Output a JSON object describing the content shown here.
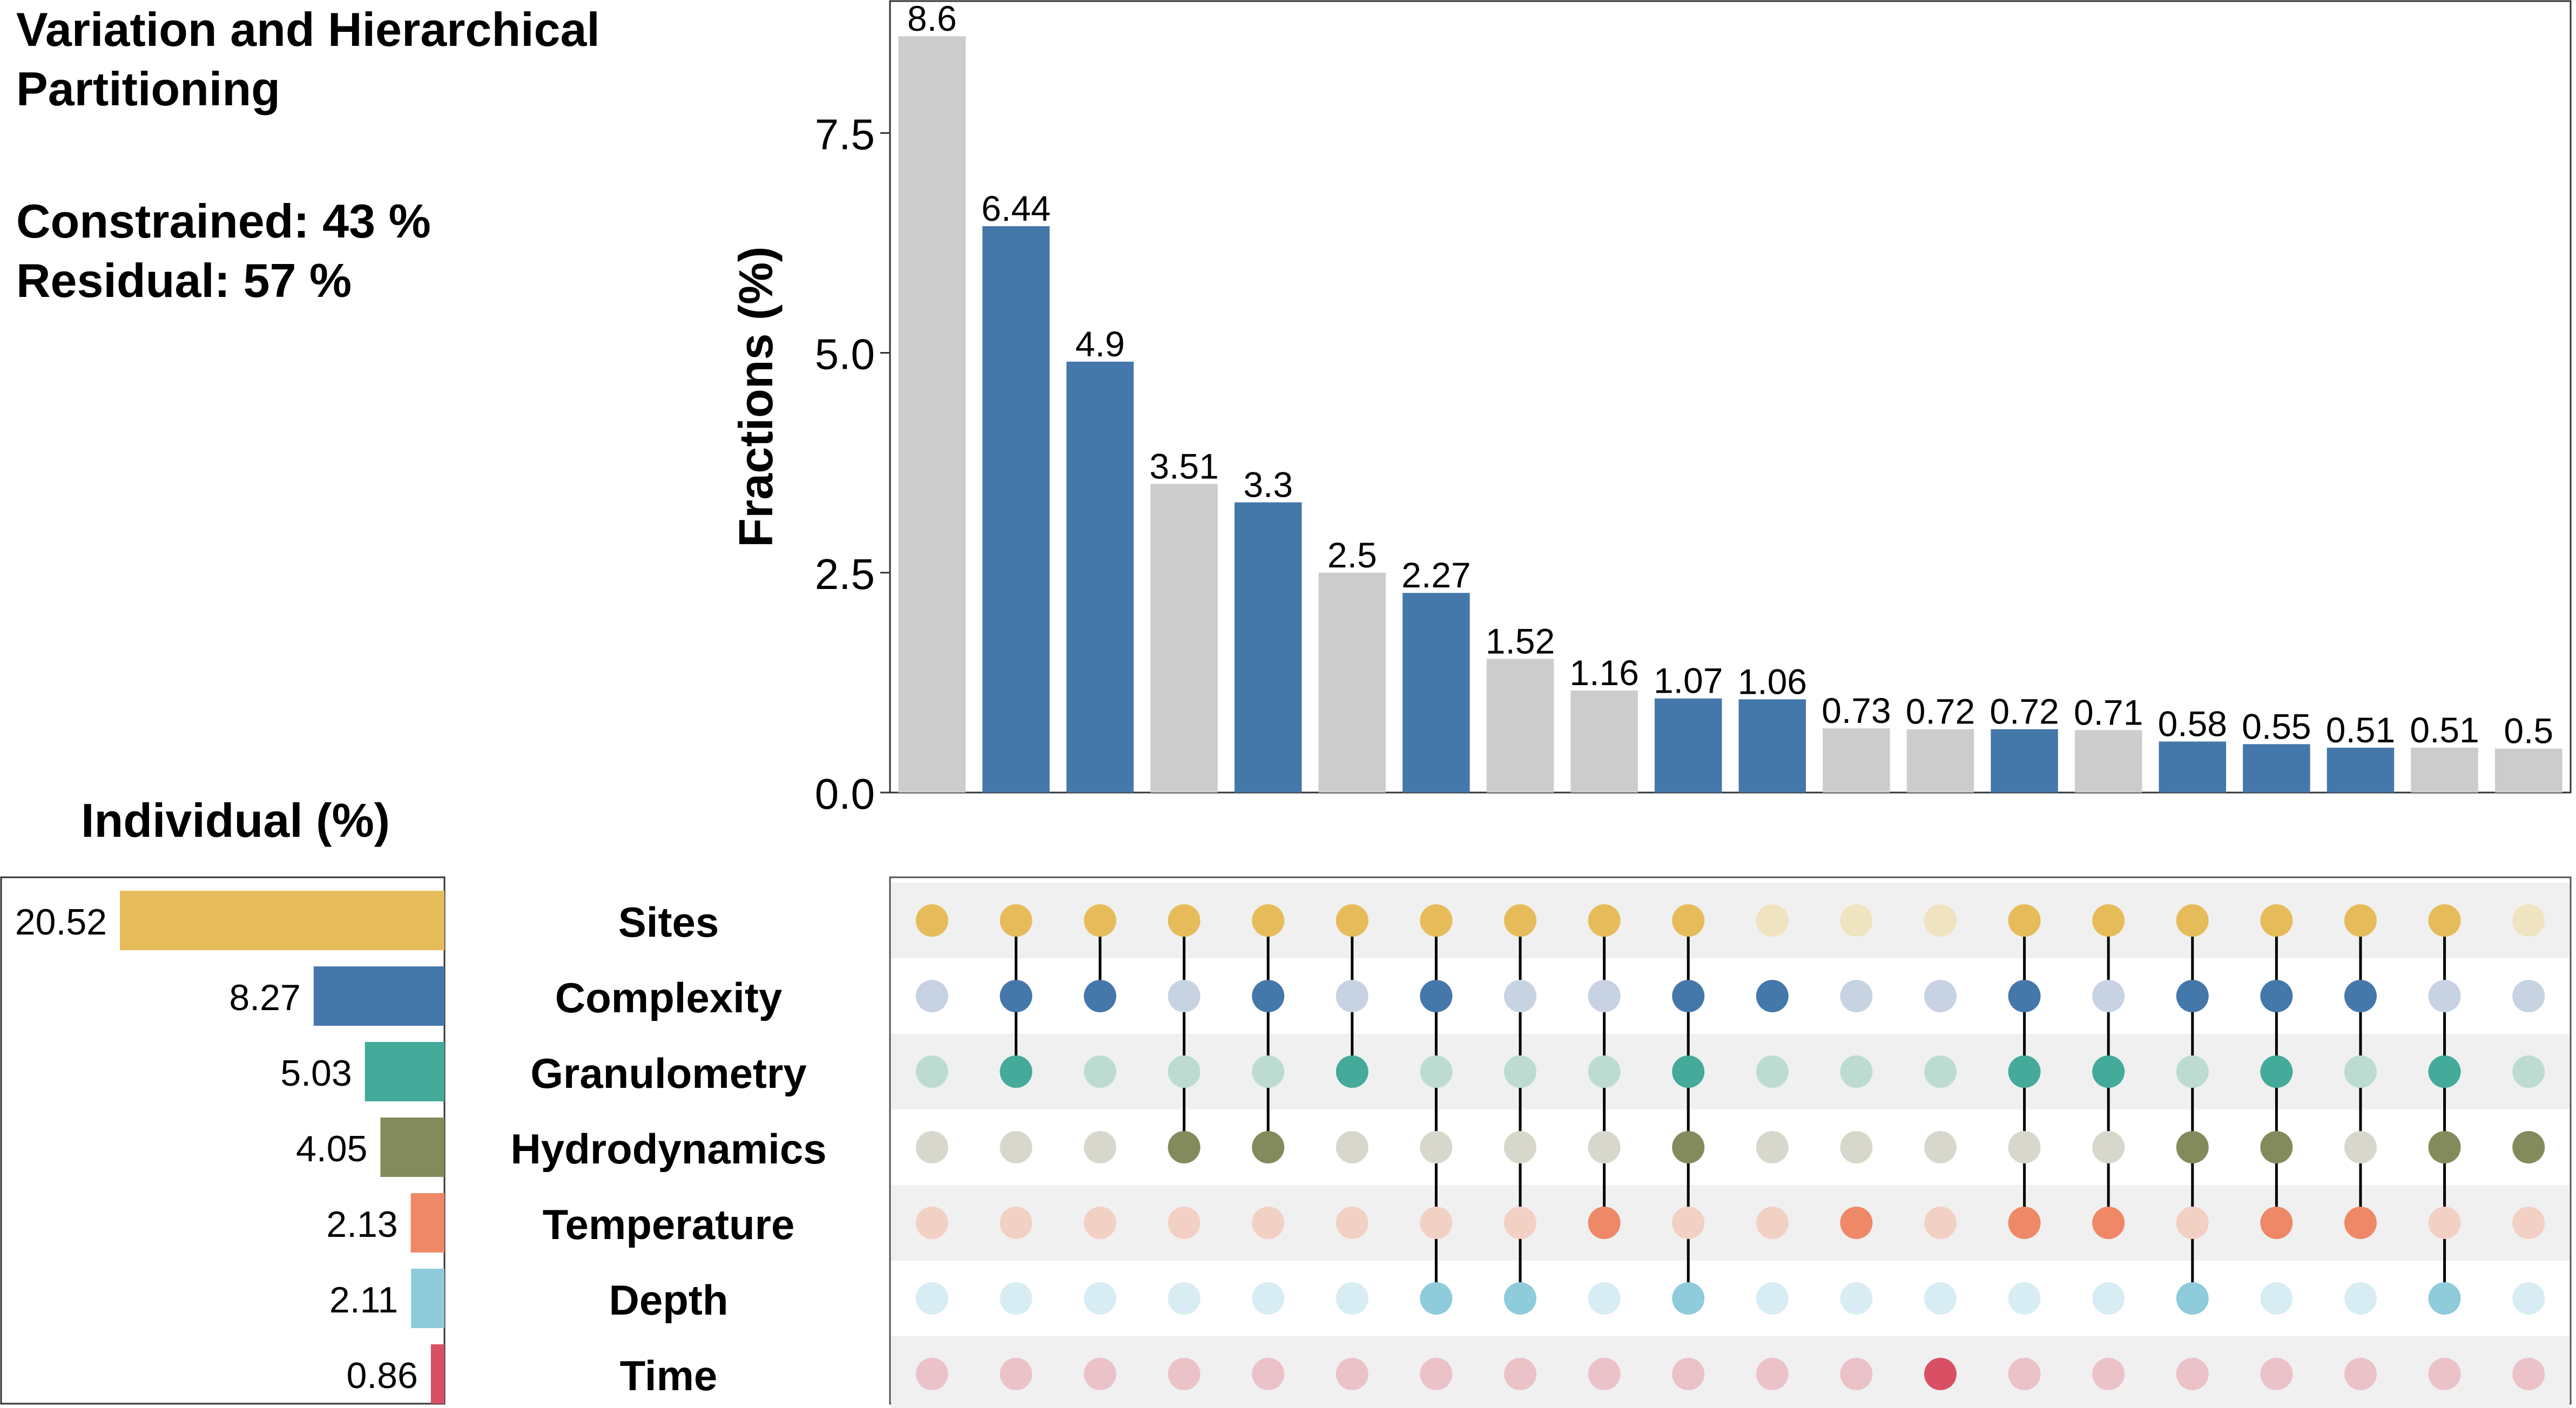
{
  "header": {
    "title_line1": "Variation and Hierarchical",
    "title_line2": "Partitioning",
    "constrained": "Constrained: 43 %",
    "residual": "Residual: 57 %"
  },
  "individual_title": "Individual (%)",
  "chart_data": [
    {
      "type": "bar",
      "name": "fractions",
      "ylabel": "Fractions (%)",
      "ylim": [
        0,
        9.0
      ],
      "yticks": [
        0.0,
        2.5,
        5.0,
        7.5
      ],
      "ytick_labels": [
        "0.0",
        "2.5",
        "5.0",
        "7.5"
      ],
      "values": [
        8.6,
        6.44,
        4.9,
        3.51,
        3.3,
        2.5,
        2.27,
        1.52,
        1.16,
        1.07,
        1.06,
        0.73,
        0.72,
        0.72,
        0.71,
        0.58,
        0.55,
        0.51,
        0.51,
        0.5
      ],
      "labels": [
        "8.6",
        "6.44",
        "4.9",
        "3.51",
        "3.3",
        "2.5",
        "2.27",
        "1.52",
        "1.16",
        "1.07",
        "1.06",
        "0.73",
        "0.72",
        "0.72",
        "0.71",
        "0.58",
        "0.55",
        "0.51",
        "0.51",
        "0.5"
      ],
      "highlight": [
        false,
        true,
        true,
        false,
        true,
        false,
        true,
        false,
        false,
        true,
        true,
        false,
        false,
        true,
        false,
        true,
        true,
        true,
        false,
        false
      ],
      "colors": {
        "highlight": "#4477aa",
        "normal": "#cccccc"
      }
    },
    {
      "type": "bar",
      "name": "individual",
      "orientation": "horizontal-reversed",
      "categories": [
        "Sites",
        "Complexity",
        "Granulometry",
        "Hydrodynamics",
        "Temperature",
        "Depth",
        "Time"
      ],
      "values": [
        20.52,
        8.27,
        5.03,
        4.05,
        2.13,
        2.11,
        0.86
      ],
      "labels": [
        "20.52",
        "8.27",
        "5.03",
        "4.05",
        "2.13",
        "2.11",
        "0.86"
      ],
      "xlim": [
        0,
        20.52
      ],
      "colors": [
        "#e6bb5a",
        "#4477aa",
        "#44aa99",
        "#838b5c",
        "#ee8866",
        "#8ecbdb",
        "#d95065"
      ]
    },
    {
      "type": "matrix",
      "name": "combination-matrix",
      "rows": [
        "Sites",
        "Complexity",
        "Granulometry",
        "Hydrodynamics",
        "Temperature",
        "Depth",
        "Time"
      ],
      "active_color": [
        "#e6bb5a",
        "#4477aa",
        "#44aa99",
        "#838b5c",
        "#ee8866",
        "#8ecbdb",
        "#d95065"
      ],
      "inactive_color": [
        "#f0e3bf",
        "#c7d3e2",
        "#bcdcd2",
        "#d7d8cb",
        "#f3d0c4",
        "#d8edf3",
        "#ecc2c9"
      ],
      "row_stripe_color": "#f0f0f0",
      "columns": [
        [
          0
        ],
        [
          0,
          1,
          2
        ],
        [
          0,
          1
        ],
        [
          0,
          3
        ],
        [
          0,
          1,
          3
        ],
        [
          0,
          2
        ],
        [
          0,
          1,
          5
        ],
        [
          0,
          5
        ],
        [
          0,
          4
        ],
        [
          0,
          1,
          2,
          3,
          5
        ],
        [
          1
        ],
        [
          4
        ],
        [
          6
        ],
        [
          0,
          1,
          2,
          4
        ],
        [
          0,
          2,
          4
        ],
        [
          0,
          1,
          3,
          5
        ],
        [
          0,
          1,
          2,
          3,
          4
        ],
        [
          0,
          1,
          4
        ],
        [
          0,
          2,
          3,
          5
        ],
        [
          3
        ]
      ]
    }
  ]
}
